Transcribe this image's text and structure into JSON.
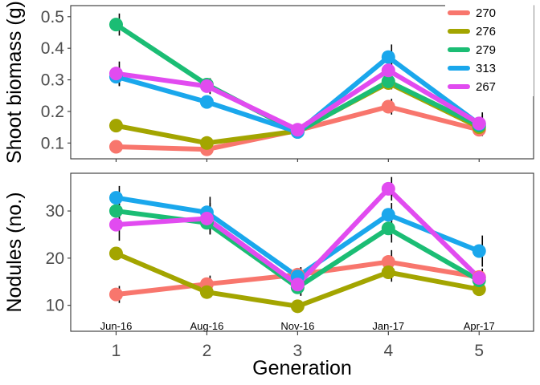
{
  "chart_data": {
    "type": "line",
    "x": [
      1,
      2,
      3,
      4,
      5
    ],
    "x_ticks": [
      "1",
      "2",
      "3",
      "4",
      "5"
    ],
    "x_date_labels": [
      "Jun-16",
      "Aug-16",
      "Nov-16",
      "Jan-17",
      "Apr-17"
    ],
    "xlabel": "Generation",
    "xlim": [
      0.5,
      5.6
    ],
    "legend": [
      "270",
      "276",
      "279",
      "313",
      "267"
    ],
    "legend_position": "top-right",
    "grid": false,
    "colors": {
      "270": "#F8766D",
      "276": "#A3A500",
      "279": "#1BBD74",
      "313": "#1AA7EC",
      "267": "#E14BF0"
    },
    "panels": [
      {
        "ylabel": "Shoot biomass (g)",
        "ylim": [
          0.05,
          0.535
        ],
        "yticks": [
          0.1,
          0.2,
          0.3,
          0.4,
          0.5
        ],
        "ytick_labels": [
          "0.1",
          "0.2",
          "0.3",
          "0.4",
          "0.5"
        ],
        "series": [
          {
            "name": "270",
            "values": [
              0.088,
              0.08,
              0.14,
              0.215,
              0.142
            ],
            "errors": [
              0.0,
              0.0,
              0.0,
              0.025,
              0.02
            ]
          },
          {
            "name": "276",
            "values": [
              0.155,
              0.1,
              0.138,
              0.29,
              0.15
            ],
            "errors": [
              0.0,
              0.0,
              0.0,
              0.0,
              0.0
            ]
          },
          {
            "name": "279",
            "values": [
              0.475,
              0.285,
              0.135,
              0.295,
              0.155
            ],
            "errors": [
              0.035,
              0.02,
              0.0,
              0.025,
              0.03
            ]
          },
          {
            "name": "313",
            "values": [
              0.31,
              0.23,
              0.135,
              0.372,
              0.16
            ],
            "errors": [
              0.03,
              0.0,
              0.0,
              0.04,
              0.03
            ]
          },
          {
            "name": "267",
            "values": [
              0.32,
              0.28,
              0.142,
              0.33,
              0.162
            ],
            "errors": [
              0.038,
              0.025,
              0.0,
              0.03,
              0.035
            ]
          }
        ]
      },
      {
        "ylabel": "Nodules (no.)",
        "ylim": [
          4.5,
          38
        ],
        "yticks": [
          10,
          20,
          30
        ],
        "ytick_labels": [
          "10",
          "20",
          "30"
        ],
        "series": [
          {
            "name": "270",
            "values": [
              12.3,
              14.5,
              16.5,
              19.2,
              16.0
            ],
            "errors": [
              1.8,
              1.8,
              1.5,
              2.5,
              1.5
            ]
          },
          {
            "name": "276",
            "values": [
              21.0,
              12.8,
              9.8,
              17.0,
              13.4
            ],
            "errors": [
              0.0,
              0.0,
              0.0,
              2.0,
              1.2
            ]
          },
          {
            "name": "279",
            "values": [
              30.0,
              27.5,
              13.8,
              26.3,
              15.3
            ],
            "errors": [
              2.5,
              2.5,
              1.8,
              3.0,
              2.0
            ]
          },
          {
            "name": "313",
            "values": [
              32.8,
              29.7,
              16.1,
              29.2,
              21.5
            ],
            "errors": [
              2.5,
              3.3,
              2.0,
              2.5,
              3.3
            ]
          },
          {
            "name": "267",
            "values": [
              27.1,
              28.4,
              14.4,
              34.7,
              15.8
            ],
            "errors": [
              3.4,
              3.3,
              2.3,
              2.5,
              2.0
            ]
          }
        ]
      }
    ]
  }
}
